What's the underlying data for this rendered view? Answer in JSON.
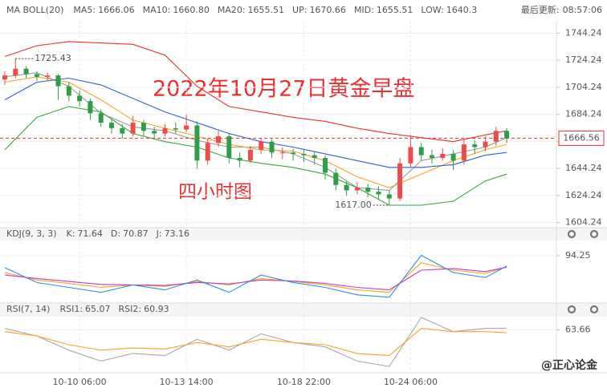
{
  "chart_data": [
    {
      "type": "candlestick",
      "title": "MA BOLL(20)",
      "update_label": "最后更新:",
      "update_time": "08:57:06",
      "up_color": "#ef4b4b",
      "down_color": "#2e9e48",
      "ohlc": [
        [
          1710,
          1716,
          1706,
          1713
        ],
        [
          1713,
          1725.43,
          1711,
          1718
        ],
        [
          1718,
          1720,
          1711,
          1714
        ],
        [
          1714,
          1716,
          1709,
          1712
        ],
        [
          1712,
          1715,
          1709,
          1713
        ],
        [
          1713,
          1714,
          1695,
          1705
        ],
        [
          1705,
          1708,
          1694,
          1698
        ],
        [
          1698,
          1702,
          1690,
          1694
        ],
        [
          1694,
          1696,
          1680,
          1685
        ],
        [
          1685,
          1688,
          1675,
          1678
        ],
        [
          1678,
          1681,
          1670,
          1674
        ],
        [
          1674,
          1677,
          1666,
          1670
        ],
        [
          1670,
          1683,
          1668,
          1678
        ],
        [
          1678,
          1680,
          1668,
          1672
        ],
        [
          1672,
          1675,
          1667,
          1670
        ],
        [
          1670,
          1677,
          1668,
          1674
        ],
        [
          1674,
          1678,
          1670,
          1673
        ],
        [
          1673,
          1684,
          1671,
          1676
        ],
        [
          1676,
          1679,
          1644,
          1650
        ],
        [
          1650,
          1666,
          1647,
          1663
        ],
        [
          1663,
          1672,
          1660,
          1668
        ],
        [
          1668,
          1670,
          1648,
          1652
        ],
        [
          1652,
          1656,
          1645,
          1650
        ],
        [
          1650,
          1661,
          1648,
          1658
        ],
        [
          1658,
          1667,
          1655,
          1664
        ],
        [
          1664,
          1666,
          1652,
          1656
        ],
        [
          1656,
          1660,
          1651,
          1656
        ],
        [
          1656,
          1659,
          1650,
          1655
        ],
        [
          1655,
          1658,
          1649,
          1654
        ],
        [
          1654,
          1657,
          1647,
          1652
        ],
        [
          1652,
          1654,
          1636,
          1641
        ],
        [
          1641,
          1644,
          1628,
          1632
        ],
        [
          1632,
          1635,
          1624,
          1628
        ],
        [
          1628,
          1634,
          1625,
          1630
        ],
        [
          1630,
          1633,
          1623,
          1627
        ],
        [
          1627,
          1631,
          1621,
          1625
        ],
        [
          1625,
          1628,
          1617,
          1622
        ],
        [
          1622,
          1652,
          1620,
          1648
        ],
        [
          1648,
          1669,
          1645,
          1660
        ],
        [
          1660,
          1663,
          1650,
          1654
        ],
        [
          1654,
          1658,
          1648,
          1652
        ],
        [
          1652,
          1659,
          1650,
          1655
        ],
        [
          1655,
          1658,
          1643,
          1650
        ],
        [
          1650,
          1666,
          1647,
          1662
        ],
        [
          1662,
          1665,
          1655,
          1660
        ],
        [
          1660,
          1668,
          1657,
          1664
        ],
        [
          1664,
          1675,
          1661,
          1672
        ],
        [
          1672,
          1674,
          1663,
          1666.56
        ]
      ],
      "categories": [
        null,
        null,
        null,
        null,
        null,
        null,
        null,
        "10-10 06:00",
        null,
        null,
        null,
        null,
        null,
        null,
        null,
        null,
        null,
        "10-13 14:00",
        null,
        null,
        null,
        null,
        null,
        null,
        null,
        null,
        null,
        null,
        "10-18 22:00",
        null,
        null,
        null,
        null,
        null,
        null,
        null,
        null,
        null,
        "10-24 06:00",
        null,
        null,
        null,
        null,
        null,
        null,
        null,
        null,
        null
      ],
      "x": [
        0,
        3,
        6,
        9,
        12,
        15,
        18,
        21,
        24,
        27,
        30,
        33,
        36,
        39,
        42,
        45,
        47
      ],
      "series": [
        {
          "name": "MA5:",
          "color": "#9b9b9b",
          "legend_value": 1666.06,
          "values": [
            1712,
            1715,
            1705,
            1685,
            1675,
            1672,
            1665,
            1660,
            1660,
            1655,
            1645,
            1630,
            1628,
            1650,
            1655,
            1660,
            1667
          ]
        },
        {
          "name": "MA10:",
          "color": "#f5a623",
          "legend_value": {
            "value": 1660.8,
            "label": "1660.80"
          },
          "values": [
            1708,
            1712,
            1708,
            1695,
            1680,
            1674,
            1668,
            1662,
            1658,
            1657,
            1650,
            1638,
            1630,
            1640,
            1650,
            1658,
            1662
          ]
        },
        {
          "name": "MA20:",
          "color": "#c23cc2",
          "legend_value": 1655.51
        },
        {
          "name": "UP:",
          "color": "#e8312f",
          "legend_value": 1670.66,
          "values": [
            1727,
            1735,
            1738,
            1737,
            1736,
            1728,
            1705,
            1690,
            1686,
            1682,
            1679,
            1674,
            1670,
            1667,
            1664,
            1669,
            1672
          ]
        },
        {
          "name": "MID:",
          "color": "#2f5fd0",
          "legend_value": 1655.51,
          "values": [
            1695,
            1708,
            1711,
            1706,
            1696,
            1686,
            1678,
            1670,
            1664,
            1660,
            1655,
            1650,
            1645,
            1645,
            1647,
            1654,
            1656
          ]
        },
        {
          "name": "LOW:",
          "color": "#3aa63a",
          "legend_value": 1640.3,
          "values": [
            1658,
            1682,
            1690,
            1686,
            1670,
            1664,
            1660,
            1652,
            1648,
            1645,
            1640,
            1630,
            1617,
            1617,
            1620,
            1635,
            1640
          ]
        }
      ],
      "ylim": [
        1601,
        1751
      ],
      "yticks": [
        1744.24,
        1724.24,
        1704.24,
        1684.24,
        1664.24,
        1644.24,
        1624.24,
        1604.24
      ],
      "last_price": 1666.56,
      "max_label": 1725.43,
      "min_label": {
        "value": 1617,
        "label": "1617.00"
      },
      "annotations": [
        "2022年10月27日黄金早盘",
        "四小时图"
      ],
      "watermark": "@正心论金"
    },
    {
      "type": "line",
      "title": "KDJ(9, 3, 3)",
      "x": [
        0,
        3,
        6,
        9,
        12,
        15,
        18,
        21,
        24,
        27,
        30,
        33,
        36,
        39,
        42,
        45,
        47
      ],
      "series": [
        {
          "name": "K:",
          "color": "#f5a623",
          "legend_value": 71.64,
          "values": [
            60,
            45,
            38,
            30,
            35,
            32,
            42,
            35,
            48,
            42,
            35,
            25,
            20,
            80,
            65,
            58,
            71.64
          ]
        },
        {
          "name": "D:",
          "color": "#c23cc2",
          "legend_value": 70.87,
          "values": [
            55,
            48,
            42,
            36,
            35,
            34,
            40,
            37,
            45,
            43,
            38,
            30,
            25,
            65,
            68,
            62,
            70.87
          ]
        },
        {
          "name": "J:",
          "color": "#2f8fe0",
          "legend_value": 73.16,
          "values": [
            70,
            40,
            30,
            20,
            35,
            25,
            45,
            20,
            55,
            40,
            30,
            15,
            10,
            95,
            60,
            50,
            73.16
          ]
        }
      ],
      "ylim": [
        0,
        125
      ],
      "yticks": [
        94.25
      ]
    },
    {
      "type": "line",
      "title": "RSI(7, 14)",
      "x": [
        0,
        3,
        6,
        9,
        12,
        15,
        18,
        21,
        24,
        27,
        30,
        33,
        36,
        39,
        42,
        45,
        47
      ],
      "series": [
        {
          "name": "RSI1:",
          "color": "#a8a8a8",
          "legend_value": 65.07,
          "values": [
            65,
            58,
            45,
            35,
            42,
            40,
            55,
            45,
            60,
            52,
            48,
            35,
            30,
            75,
            62,
            65,
            65.07
          ]
        },
        {
          "name": "RSI2:",
          "color": "#f5a623",
          "legend_value": 60.93,
          "values": [
            62,
            58,
            50,
            45,
            47,
            46,
            52,
            48,
            55,
            52,
            50,
            42,
            40,
            65,
            62,
            62,
            60.93
          ]
        }
      ],
      "ylim": [
        25,
        75
      ],
      "yticks": [
        63.66
      ]
    }
  ]
}
